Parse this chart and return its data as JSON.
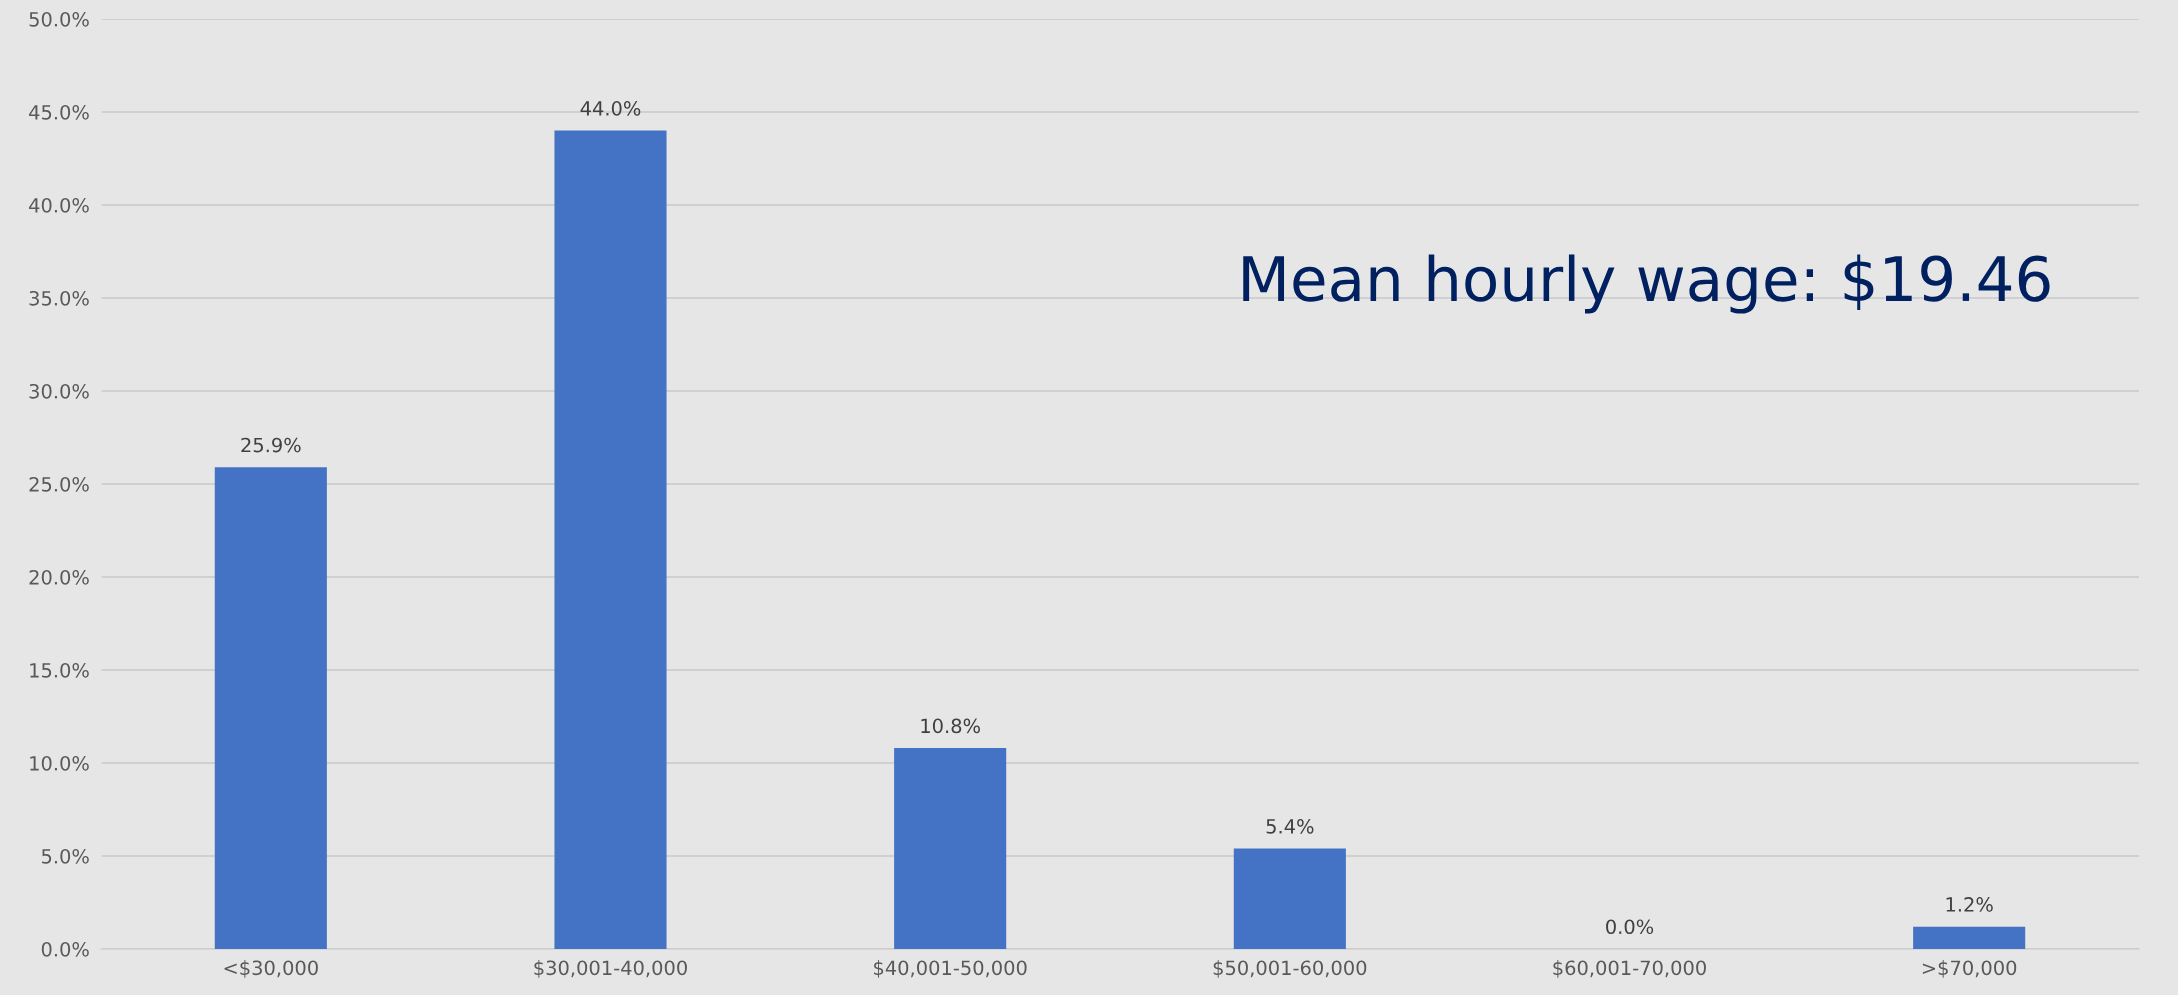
{
  "chart_data": {
    "type": "bar",
    "categories": [
      "<$30,000",
      "$30,001-40,000",
      "$40,001-50,000",
      "$50,001-60,000",
      "$60,001-70,000",
      ">$70,000"
    ],
    "values": [
      25.9,
      44.0,
      10.8,
      5.4,
      0.0,
      1.2
    ],
    "value_labels": [
      "25.9%",
      "44.0%",
      "10.8%",
      "5.4%",
      "0.0%",
      "1.2%"
    ],
    "color": "#4472c4",
    "ylim": [
      0,
      50
    ],
    "yticks": [
      {
        "value": 0,
        "label": "0.0%"
      },
      {
        "value": 5,
        "label": "5.0%"
      },
      {
        "value": 10,
        "label": "10.0%"
      },
      {
        "value": 15,
        "label": "15.0%"
      },
      {
        "value": 20,
        "label": "20.0%"
      },
      {
        "value": 25,
        "label": "25.0%"
      },
      {
        "value": 30,
        "label": "30.0%"
      },
      {
        "value": 35,
        "label": "35.0%"
      },
      {
        "value": 40,
        "label": "40.0%"
      },
      {
        "value": 45,
        "label": "45.0%"
      },
      {
        "value": 50,
        "label": "50.0%"
      }
    ],
    "grid": "y",
    "annotations": [
      "Mean hourly wage: $19.46"
    ]
  }
}
